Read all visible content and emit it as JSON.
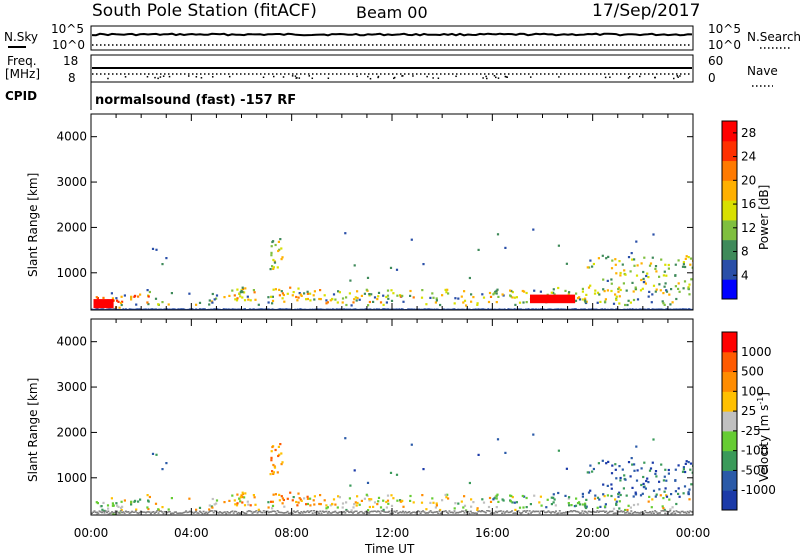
{
  "header": {
    "station": "South Pole Station (fitACF)",
    "beam": "Beam 00",
    "date": "17/Sep/2017"
  },
  "noise_panel": {
    "left_label": "N.Sky",
    "right_label": "N.Search",
    "ticks_top": "10^5",
    "ticks_bottom": "10^0"
  },
  "freq_panel": {
    "left_label_line1": "Freq.",
    "left_label_line2": "[MHz]",
    "left_ticks": [
      "18",
      "8"
    ],
    "right_label": "Nave",
    "right_ticks": [
      "60",
      "0"
    ],
    "cpid_label": "CPID"
  },
  "cpid_text": "normalsound (fast) -157 RF",
  "colors": {
    "power_scale": [
      "#0000ff",
      "#2a4fa8",
      "#3f8a5a",
      "#7fbf3f",
      "#d8e000",
      "#ffb000",
      "#ff7a00",
      "#ff3000",
      "#ff0000"
    ],
    "velocity_scale": [
      "#ff0000",
      "#ff5a00",
      "#ff8c00",
      "#ffc000",
      "#c0c0c0",
      "#66cc33",
      "#3a9a5a",
      "#2a5aa8",
      "#1b3aa8"
    ],
    "ground_scatter": "#808080"
  },
  "chart_data": [
    {
      "type": "heatmap",
      "name": "power",
      "ylabel": "Slant Range [km]",
      "y_ticks": [
        "1000",
        "2000",
        "3000",
        "4000"
      ],
      "ylim": [
        180,
        4500
      ],
      "x_range": [
        "00:00",
        "24:00"
      ],
      "colorbar": {
        "label": "Power [dB]",
        "ticks": [
          "4",
          "8",
          "12",
          "16",
          "20",
          "24",
          "28"
        ],
        "range": [
          0,
          30
        ]
      }
    },
    {
      "type": "heatmap",
      "name": "velocity",
      "ylabel": "Slant Range [km]",
      "y_ticks": [
        "1000",
        "2000",
        "3000",
        "4000"
      ],
      "ylim": [
        180,
        4500
      ],
      "xlabel": "Time UT",
      "x_ticks": [
        "00:00",
        "04:00",
        "08:00",
        "12:00",
        "16:00",
        "20:00",
        "00:00"
      ],
      "colorbar": {
        "label": "Velocity [m s-1]",
        "ticks": [
          "1000",
          "500",
          "100",
          "25",
          "-25",
          "-100",
          "-500",
          "-1000"
        ]
      }
    }
  ]
}
